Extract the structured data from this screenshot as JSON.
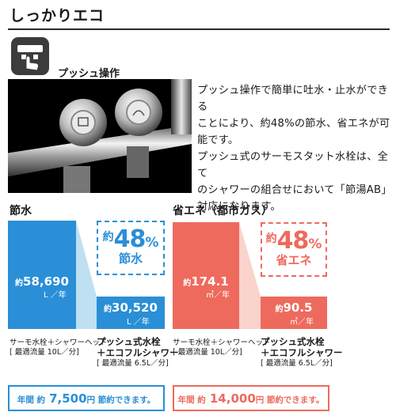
{
  "header": {
    "title": "しっかりエコ"
  },
  "feature": {
    "label": "プッシュ操作",
    "icon": "push-button-icon"
  },
  "photo": {
    "subject": "faucet-photo"
  },
  "description": {
    "lines": [
      "プッシュ操作で簡単に吐水・止水ができる",
      "ことにより、約48%の節水、省エネが可",
      "能です。",
      "プッシュ式のサーモスタット水栓は、全て",
      "のシャワーの組合せにおいて「節湯AB」",
      "対応になります。"
    ]
  },
  "colors": {
    "water_main": "#2a8fd6",
    "water_light": "#bfe0f3",
    "energy_main": "#ee6a5d",
    "energy_light": "#fad3cd"
  },
  "water": {
    "heading": "節水",
    "before": {
      "prefix": "約",
      "value": "58,690",
      "unit": "L ／年"
    },
    "after": {
      "prefix": "約",
      "value": "30,520",
      "unit": "L ／年"
    },
    "savings": {
      "prefix": "約",
      "percent": "48",
      "percent_sign": "%",
      "label": "節水"
    },
    "before_caption": {
      "line1": "サーモ水栓＋シャワーヘッド",
      "line2": "[ 最適流量 10L／分]"
    },
    "after_caption": {
      "line1": "プッシュ式水栓",
      "line2": "＋エコフルシャワー",
      "line3": "[ 最適流量 6.5L／分]"
    },
    "annual": {
      "p1": "年間 約",
      "amount": "7,500",
      "p2": "円 節約できます。"
    }
  },
  "energy": {
    "heading": "省エネ（都市ガス）",
    "before": {
      "prefix": "約",
      "value": "174.1",
      "unit": "㎥／年"
    },
    "after": {
      "prefix": "約",
      "value": "90.5",
      "unit": "㎥／年"
    },
    "savings": {
      "prefix": "約",
      "percent": "48",
      "percent_sign": "%",
      "label": "省エネ"
    },
    "before_caption": {
      "line1": "サーモ水栓＋シャワーヘッド",
      "line2": "[ 最適流量 10L／分]"
    },
    "after_caption": {
      "line1": "プッシュ式水栓",
      "line2": "＋エコフルシャワー",
      "line3": "[ 最適流量 6.5L／分]"
    },
    "annual": {
      "p1": "年間 約",
      "amount": "14,000",
      "p2": "円 節約できます。"
    }
  }
}
